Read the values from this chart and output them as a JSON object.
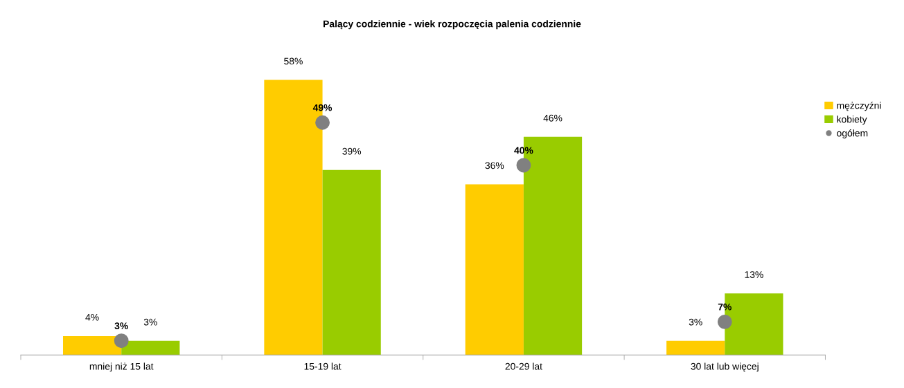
{
  "chart_data": {
    "type": "bar",
    "title": "Palący codziennie - wiek rozpoczęcia palenia codziennie",
    "categories": [
      "mniej niż 15 lat",
      "15-19 lat",
      "20-29 lat",
      "30 lat lub więcej"
    ],
    "series": [
      {
        "name": "mężczyźni",
        "color": "#ffcc00",
        "values": [
          4,
          58,
          36,
          3
        ],
        "value_labels": [
          "4%",
          "58%",
          "36%",
          "3%"
        ]
      },
      {
        "name": "kobiety",
        "color": "#99cc00",
        "values": [
          3,
          39,
          46,
          13
        ],
        "value_labels": [
          "3%",
          "39%",
          "46%",
          "13%"
        ]
      },
      {
        "name": "ogółem",
        "type": "scatter",
        "color": "#808080",
        "marker": "circle",
        "values": [
          3,
          49,
          40,
          7
        ],
        "value_labels": [
          "3%",
          "49%",
          "40%",
          "7%"
        ]
      }
    ],
    "legend": "right",
    "grid": false
  }
}
